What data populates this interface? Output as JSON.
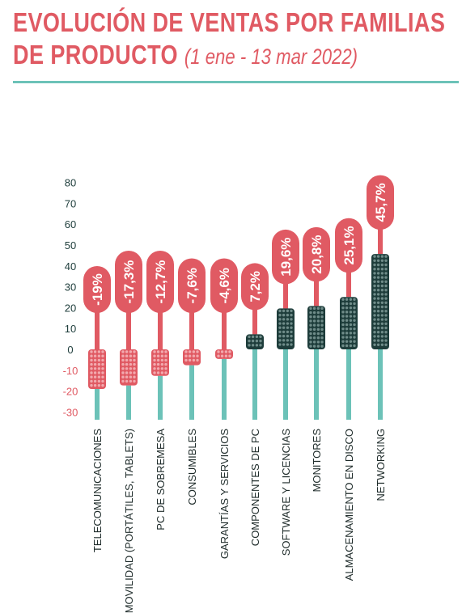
{
  "title": {
    "line1": "EVOLUCIÓN DE VENTAS POR FAMILIAS",
    "line2": "DE PRODUCTO",
    "subtitle": "(1 ene - 13 mar 2022)"
  },
  "colors": {
    "negative": "#e05a63",
    "positive": "#1e3d3b",
    "stem_top": "#e05a63",
    "stem_bottom": "#6cc2b8",
    "rule": "#6cc2b8",
    "tick_positive": "#1e3d3b",
    "tick_negative": "#e05a63"
  },
  "chart_data": {
    "type": "bar",
    "categories": [
      "TELECOMUNICACIONES",
      "MOVILIDAD (PORTÁTILES, TABLETS)",
      "PC DE SOBREMESA",
      "CONSUMIBLES",
      "GARANTÍAS Y SERVICIOS",
      "COMPONENTES DE PC",
      "SOFTWARE Y LICENCIAS",
      "MONITORES",
      "ALMACENAMIENTO EN DISCO",
      "NETWORKING"
    ],
    "values": [
      -19,
      -17.3,
      -12.7,
      -7.6,
      -4.6,
      7.2,
      19.6,
      20.8,
      25.1,
      45.7
    ],
    "value_labels": [
      "-19%",
      "-17,3%",
      "-12,7%",
      "-7,6%",
      "-4,6%",
      "7,2%",
      "19,6%",
      "20,8%",
      "25,1%",
      "45,7%"
    ],
    "y_ticks": [
      "80",
      "70",
      "60",
      "50",
      "40",
      "30",
      "20",
      "10",
      "0",
      "-10",
      "-20",
      "-30"
    ],
    "ylim": [
      -30,
      80
    ],
    "grid": false,
    "legend": "none"
  }
}
